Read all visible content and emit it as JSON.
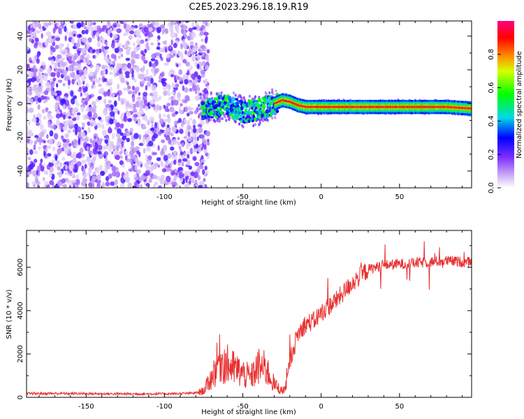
{
  "title": "C2E5.2023.296.18.19.R19",
  "chart_data": [
    {
      "type": "heatmap",
      "xlabel": "Height of straight line (km)",
      "ylabel": "Frequency (Hz)",
      "xlim": [
        -188,
        96
      ],
      "ylim": [
        -50,
        49
      ],
      "xticks": [
        -150,
        -100,
        -50,
        0,
        50
      ],
      "yticks": [
        -40,
        -20,
        0,
        20,
        40
      ],
      "colorbar": {
        "label": "Normalized spectral amplitude",
        "range": [
          0.0,
          1.0
        ],
        "ticks": [
          0.0,
          0.2,
          0.4,
          0.6,
          0.8
        ],
        "colors": [
          "#ffffff",
          "#b070f0",
          "#0000ff",
          "#00e0e0",
          "#00ff00",
          "#ffff00",
          "#ff0000",
          "#ff0080"
        ]
      },
      "regions": [
        {
          "x": [
            -188,
            -76
          ],
          "freq": [
            -50,
            49
          ],
          "amplitude": "low (0.05-0.3), noise"
        },
        {
          "x": [
            -76,
            -28
          ],
          "freq": [
            -12,
            8
          ],
          "amplitude": "medium (0.3-0.6), scattered"
        },
        {
          "x": [
            -28,
            96
          ],
          "freq": [
            -4,
            4
          ],
          "amplitude": "high (0.7-1.0), narrow line"
        }
      ],
      "ridge_center": {
        "x": [
          -76,
          -60,
          -50,
          -40,
          -30,
          -25,
          -20,
          -15,
          -10,
          0,
          20,
          50,
          80,
          96
        ],
        "freq": [
          -3,
          -1,
          -5,
          -4,
          0,
          2,
          1,
          -1,
          -2,
          -2,
          -2,
          -2,
          -2,
          -3
        ]
      }
    },
    {
      "type": "line",
      "xlabel": "Height of straight line (km)",
      "ylabel": "SNR (10 * v/v)",
      "xlim": [
        -188,
        96
      ],
      "ylim": [
        0,
        7700
      ],
      "xticks": [
        -150,
        -100,
        -50,
        0,
        50
      ],
      "yticks": [
        0,
        2000,
        4000,
        6000
      ],
      "color": "#e83030",
      "x": [
        -188,
        -170,
        -150,
        -130,
        -110,
        -90,
        -80,
        -75,
        -70,
        -65,
        -60,
        -55,
        -50,
        -45,
        -40,
        -35,
        -30,
        -25,
        -22,
        -20,
        -15,
        -10,
        -5,
        0,
        5,
        10,
        15,
        20,
        25,
        30,
        40,
        50,
        60,
        70,
        80,
        90,
        96
      ],
      "values": [
        170,
        180,
        170,
        160,
        160,
        170,
        200,
        300,
        900,
        1800,
        1500,
        1300,
        1100,
        900,
        1400,
        1300,
        600,
        300,
        500,
        1700,
        2900,
        3400,
        3500,
        3900,
        4200,
        4500,
        4900,
        5300,
        5600,
        5900,
        6100,
        6150,
        6200,
        6250,
        6300,
        6250,
        6200
      ]
    }
  ]
}
